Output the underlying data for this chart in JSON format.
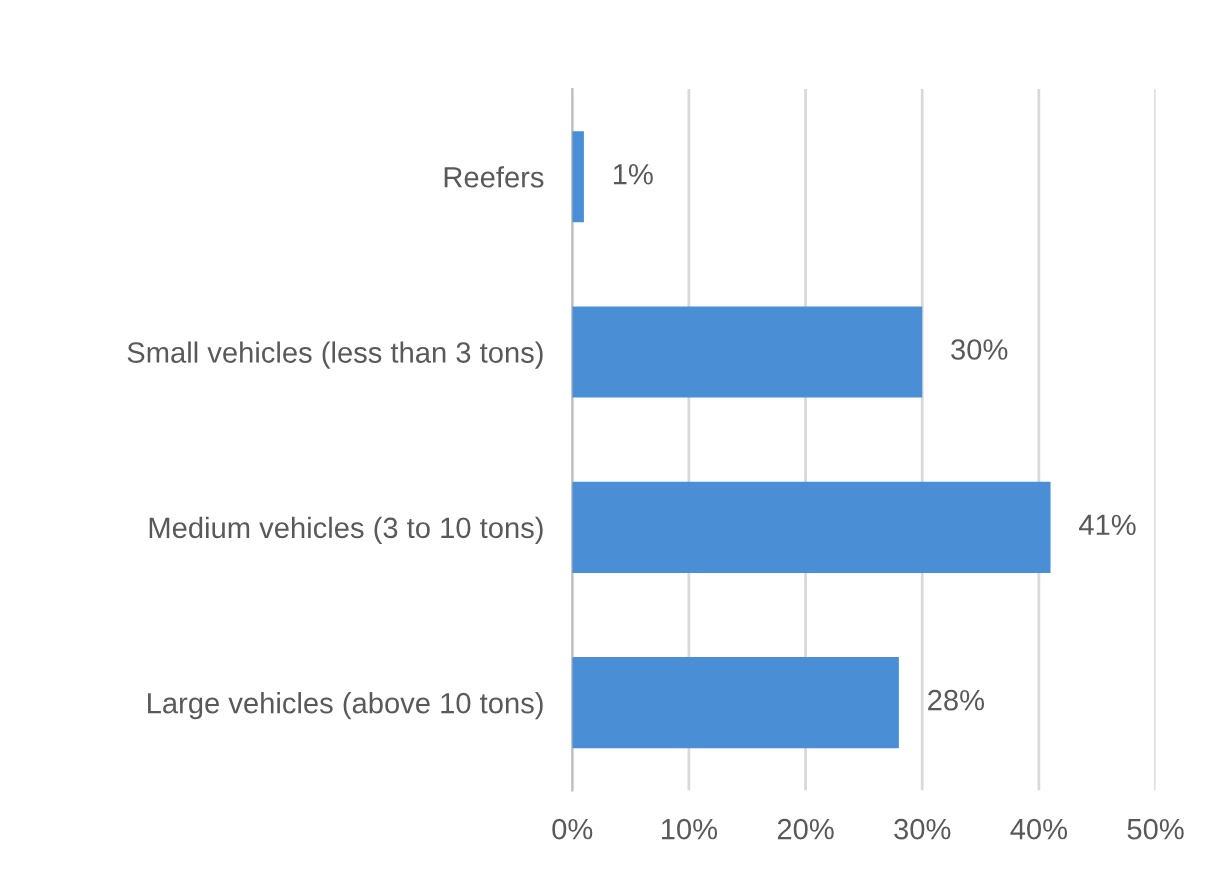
{
  "chart_data": {
    "type": "bar",
    "orientation": "horizontal",
    "categories": [
      "Reefers",
      "Small vehicles (less than 3 tons)",
      "Medium vehicles (3 to 10 tons)",
      "Large vehicles (above 10 tons)"
    ],
    "values": [
      1,
      30,
      41,
      28
    ],
    "value_labels": [
      "1%",
      "30%",
      "41%",
      "28%"
    ],
    "color": "#4a8fd6",
    "xlim": [
      0,
      50
    ],
    "xticks": [
      {
        "value": 0,
        "label": "0%"
      },
      {
        "value": 10,
        "label": "10%"
      },
      {
        "value": 20,
        "label": "20%"
      },
      {
        "value": 30,
        "label": "30%"
      },
      {
        "value": 40,
        "label": "40%"
      },
      {
        "value": 50,
        "label": "50%"
      }
    ],
    "grid": "x",
    "legend": false
  }
}
